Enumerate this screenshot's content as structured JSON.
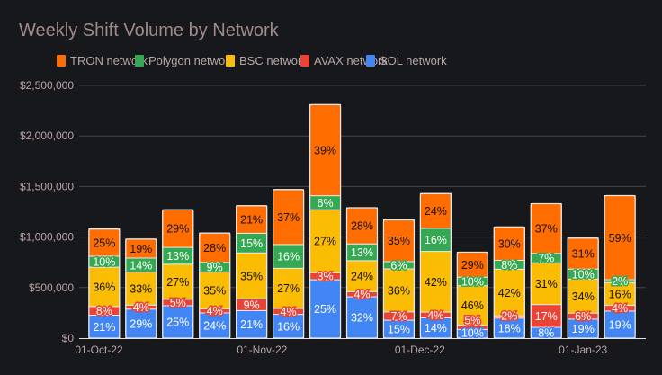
{
  "chart_data": {
    "type": "bar",
    "stacked": true,
    "title": "Weekly Shift Volume by Network",
    "xlabel": "",
    "ylabel": "",
    "ylim": [
      0,
      2500000
    ],
    "y_ticks": [
      "$0",
      "$500,000",
      "$1,000,000",
      "$1,500,000",
      "$2,000,000",
      "$2,500,000"
    ],
    "y_tick_values": [
      0,
      500000,
      1000000,
      1500000,
      2000000,
      2500000
    ],
    "x_ticks": [
      "01-Oct-22",
      "01-Nov-22",
      "01-Dec-22",
      "01-Jan-23"
    ],
    "x_tick_dates": [
      "2022-10-01",
      "2022-11-01",
      "2022-12-01",
      "2023-01-01"
    ],
    "grid": true,
    "legend_position": "top",
    "legend_order": [
      "TRON network",
      "Polygon network",
      "BSC network",
      "AVAX network",
      "SOL network"
    ],
    "dates": [
      "2022-10-02",
      "2022-10-09",
      "2022-10-16",
      "2022-10-23",
      "2022-10-30",
      "2022-11-06",
      "2022-11-13",
      "2022-11-20",
      "2022-11-27",
      "2022-12-04",
      "2022-12-11",
      "2022-12-18",
      "2022-12-25",
      "2023-01-01",
      "2023-01-08"
    ],
    "totals": [
      1080000,
      980000,
      1270000,
      1040000,
      1310000,
      1470000,
      2310000,
      1290000,
      1170000,
      1430000,
      850000,
      1100000,
      1330000,
      990000,
      1410000
    ],
    "series": [
      {
        "name": "SOL network",
        "color": "#4285f4",
        "percent": [
          21,
          29,
          25,
          24,
          21,
          16,
          25,
          32,
          15,
          14,
          10,
          18,
          8,
          19,
          19
        ]
      },
      {
        "name": "AVAX network",
        "color": "#ea4335",
        "percent": [
          8,
          4,
          5,
          4,
          9,
          4,
          3,
          4,
          7,
          4,
          5,
          2,
          17,
          6,
          4
        ]
      },
      {
        "name": "BSC network",
        "color": "#fbbc04",
        "percent": [
          36,
          33,
          27,
          35,
          35,
          27,
          27,
          24,
          36,
          42,
          46,
          42,
          31,
          34,
          16
        ]
      },
      {
        "name": "Polygon network",
        "color": "#34a853",
        "percent": [
          10,
          14,
          13,
          9,
          15,
          16,
          6,
          13,
          6,
          16,
          10,
          8,
          7,
          10,
          2
        ]
      },
      {
        "name": "TRON network",
        "color": "#ff6d01",
        "percent": [
          25,
          19,
          29,
          28,
          21,
          37,
          39,
          28,
          35,
          24,
          29,
          30,
          37,
          31,
          59
        ]
      }
    ]
  }
}
